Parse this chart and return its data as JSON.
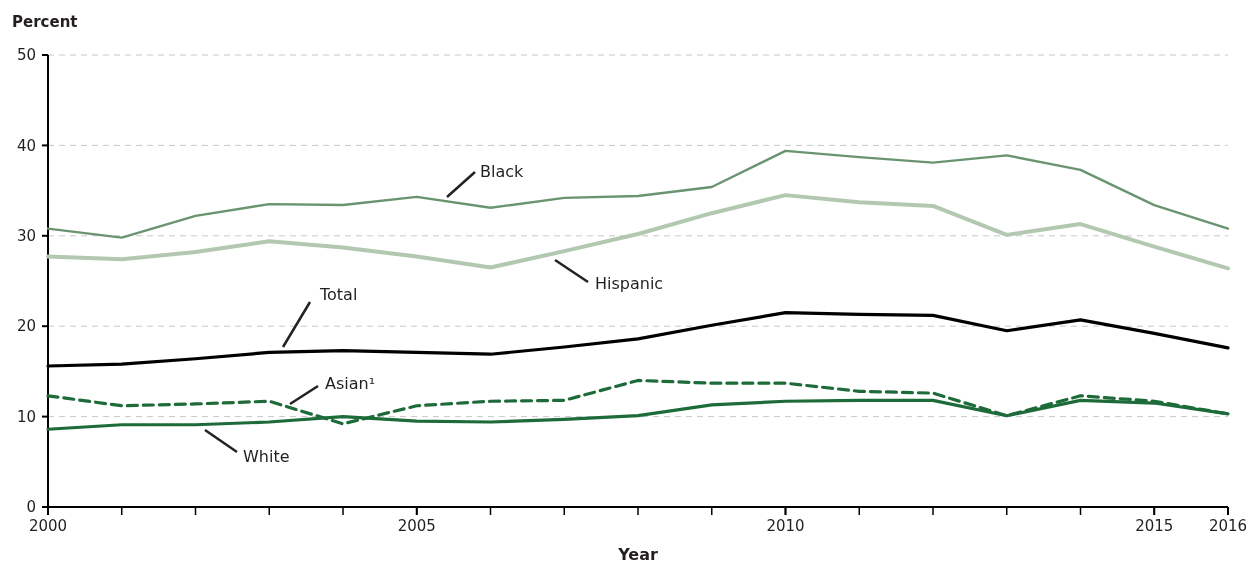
{
  "chart_data": {
    "type": "line",
    "ylabel": "Percent",
    "xlabel": "Year",
    "x": [
      2000,
      2001,
      2002,
      2003,
      2004,
      2005,
      2006,
      2007,
      2008,
      2009,
      2010,
      2011,
      2012,
      2013,
      2014,
      2015,
      2016
    ],
    "xlim": [
      2000,
      2016
    ],
    "xticks": [
      2000,
      2005,
      2010,
      2015,
      2016
    ],
    "ylim": [
      0,
      50
    ],
    "yticks": [
      0,
      10,
      20,
      30,
      40,
      50
    ],
    "grid": "y",
    "series": [
      {
        "name": "Black",
        "color": "#6a9470",
        "line_style": "solid",
        "values": [
          30.8,
          29.8,
          32.2,
          33.5,
          33.4,
          34.3,
          33.1,
          34.2,
          34.4,
          35.4,
          39.4,
          38.7,
          38.1,
          38.9,
          37.3,
          33.4,
          30.8
        ]
      },
      {
        "name": "Hispanic",
        "color": "#b3c8b0",
        "line_style": "solid",
        "values": [
          27.7,
          27.4,
          28.2,
          29.4,
          28.7,
          27.7,
          26.5,
          28.3,
          30.2,
          32.5,
          34.5,
          33.7,
          33.3,
          30.1,
          31.3,
          28.8,
          26.4
        ]
      },
      {
        "name": "Total",
        "color": "#000000",
        "line_style": "solid",
        "values": [
          15.6,
          15.8,
          16.4,
          17.1,
          17.3,
          17.1,
          16.9,
          17.7,
          18.6,
          20.1,
          21.5,
          21.3,
          21.2,
          19.5,
          20.7,
          19.2,
          17.6
        ]
      },
      {
        "name": "Asian¹",
        "color": "#1e6b3a",
        "line_style": "dashed",
        "values": [
          12.3,
          11.2,
          11.4,
          11.7,
          9.2,
          11.2,
          11.7,
          11.8,
          14.0,
          13.7,
          13.7,
          12.8,
          12.6,
          10.1,
          12.3,
          11.7,
          10.3
        ]
      },
      {
        "name": "White",
        "color": "#1e6b3a",
        "line_style": "solid",
        "values": [
          8.6,
          9.1,
          9.1,
          9.4,
          10.0,
          9.5,
          9.4,
          9.7,
          10.1,
          11.3,
          11.7,
          11.8,
          11.8,
          10.1,
          11.8,
          11.5,
          10.3
        ]
      }
    ]
  }
}
